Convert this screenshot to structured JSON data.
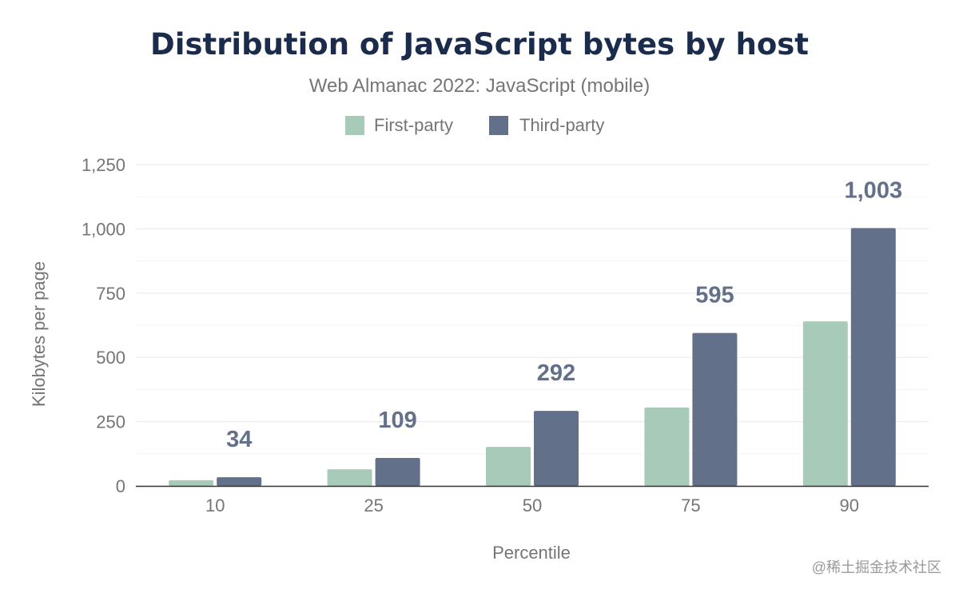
{
  "watermark": "@稀土掘金技术社区",
  "colors": {
    "first_party": "#a8cbb9",
    "third_party": "#637089",
    "title": "#1a2b4c",
    "subtitle": "#757575",
    "axis_text": "#757575",
    "label_text": "#637089",
    "grid": "#ececec",
    "baseline": "#333333"
  },
  "chart_data": {
    "type": "bar",
    "title": "Distribution of JavaScript bytes by host",
    "subtitle": "Web Almanac 2022: JavaScript (mobile)",
    "xlabel": "Percentile",
    "ylabel": "Kilobytes per page",
    "categories": [
      "10",
      "25",
      "50",
      "75",
      "90"
    ],
    "series": [
      {
        "name": "First-party",
        "values": [
          22,
          65,
          152,
          305,
          640
        ]
      },
      {
        "name": "Third-party",
        "values": [
          34,
          109,
          292,
          595,
          1003
        ]
      }
    ],
    "data_labels": [
      "34",
      "109",
      "292",
      "595",
      "1,003"
    ],
    "ylim": [
      0,
      1250
    ],
    "yticks": [
      0,
      250,
      500,
      750,
      1000,
      1250
    ],
    "ytick_labels": [
      "0",
      "250",
      "500",
      "750",
      "1,000",
      "1,250"
    ],
    "grid": true,
    "legend": "top-center"
  }
}
